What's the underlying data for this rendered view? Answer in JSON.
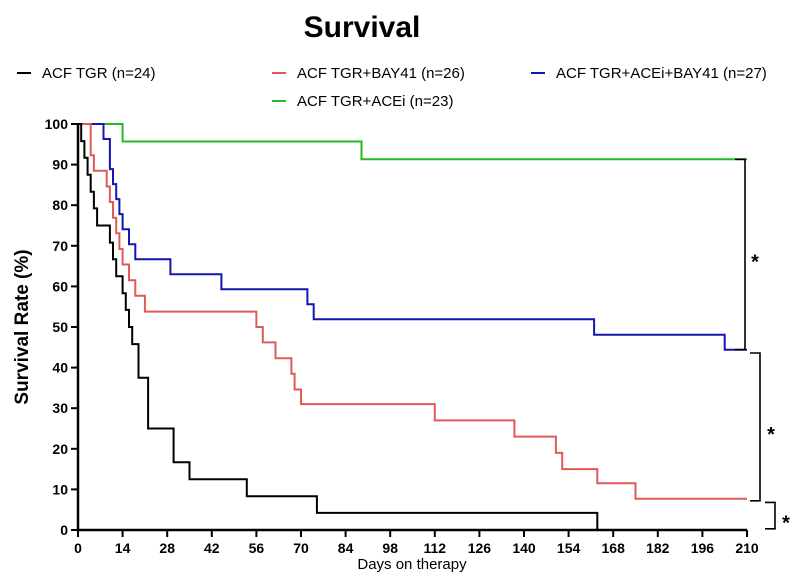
{
  "chart_data": {
    "type": "line",
    "step": true,
    "title": "Survival",
    "xlabel": "Days on therapy",
    "ylabel": "Survival Rate (%)",
    "xlim": [
      0,
      210
    ],
    "ylim": [
      0,
      100
    ],
    "x_ticks": [
      0,
      14,
      28,
      42,
      56,
      70,
      84,
      98,
      112,
      126,
      140,
      154,
      168,
      182,
      196,
      210
    ],
    "y_ticks": [
      0,
      10,
      20,
      30,
      40,
      50,
      60,
      70,
      80,
      90,
      100
    ],
    "grid": false,
    "legend_position": "top",
    "series": [
      {
        "name": "ACF TGR (n=24)",
        "color": "#000000",
        "points": [
          [
            0,
            100
          ],
          [
            1,
            95.8
          ],
          [
            2,
            91.7
          ],
          [
            3,
            87.5
          ],
          [
            4,
            83.3
          ],
          [
            5,
            79.2
          ],
          [
            6,
            75
          ],
          [
            10,
            70.8
          ],
          [
            11,
            66.7
          ],
          [
            12,
            62.5
          ],
          [
            14,
            58.3
          ],
          [
            15,
            54.2
          ],
          [
            16,
            50
          ],
          [
            17,
            45.8
          ],
          [
            19,
            37.5
          ],
          [
            22,
            25
          ],
          [
            30,
            16.7
          ],
          [
            35,
            12.5
          ],
          [
            53,
            8.3
          ],
          [
            75,
            4.2
          ],
          [
            163,
            0
          ]
        ]
      },
      {
        "name": "ACF TGR+BAY41 (n=26)",
        "color": "#e05a55",
        "points": [
          [
            0,
            100
          ],
          [
            4,
            92.3
          ],
          [
            5,
            88.5
          ],
          [
            9,
            84.6
          ],
          [
            10,
            80.8
          ],
          [
            11,
            76.9
          ],
          [
            12,
            73.1
          ],
          [
            13,
            69.2
          ],
          [
            14,
            65.4
          ],
          [
            16,
            61.5
          ],
          [
            18,
            57.7
          ],
          [
            21,
            53.8
          ],
          [
            56,
            50
          ],
          [
            58,
            46.2
          ],
          [
            62,
            42.3
          ],
          [
            67,
            38.5
          ],
          [
            68,
            34.6
          ],
          [
            70,
            31
          ],
          [
            112,
            27
          ],
          [
            137,
            23
          ],
          [
            150,
            19
          ],
          [
            152,
            15
          ],
          [
            163,
            11.5
          ],
          [
            175,
            7.7
          ],
          [
            210,
            7.7
          ]
        ]
      },
      {
        "name": "ACF TGR+ACEi (n=23)",
        "color": "#22bb22",
        "points": [
          [
            0,
            100
          ],
          [
            14,
            95.7
          ],
          [
            89,
            91.3
          ],
          [
            210,
            91.3
          ]
        ]
      },
      {
        "name": "ACF TGR+ACEi+BAY41 (n=27)",
        "color": "#1515b0",
        "points": [
          [
            0,
            100
          ],
          [
            8,
            96.3
          ],
          [
            10,
            88.9
          ],
          [
            11,
            85.2
          ],
          [
            12,
            81.5
          ],
          [
            13,
            77.8
          ],
          [
            14,
            74.1
          ],
          [
            16,
            70.4
          ],
          [
            18,
            66.7
          ],
          [
            29,
            63
          ],
          [
            45,
            59.3
          ],
          [
            72,
            55.6
          ],
          [
            74,
            51.9
          ],
          [
            162,
            48.1
          ],
          [
            203,
            44.4
          ],
          [
            210,
            44.4
          ]
        ]
      }
    ],
    "annotations": [
      {
        "text": "*",
        "between": [
          "ACF TGR+ACEi (n=23)",
          "ACF TGR+ACEi+BAY41 (n=27)"
        ]
      },
      {
        "text": "*",
        "between": [
          "ACF TGR+ACEi+BAY41 (n=27)",
          "ACF TGR+BAY41 (n=26)"
        ]
      },
      {
        "text": "*",
        "between": [
          "ACF TGR+BAY41 (n=26)",
          "ACF TGR (n=24)"
        ]
      }
    ]
  }
}
